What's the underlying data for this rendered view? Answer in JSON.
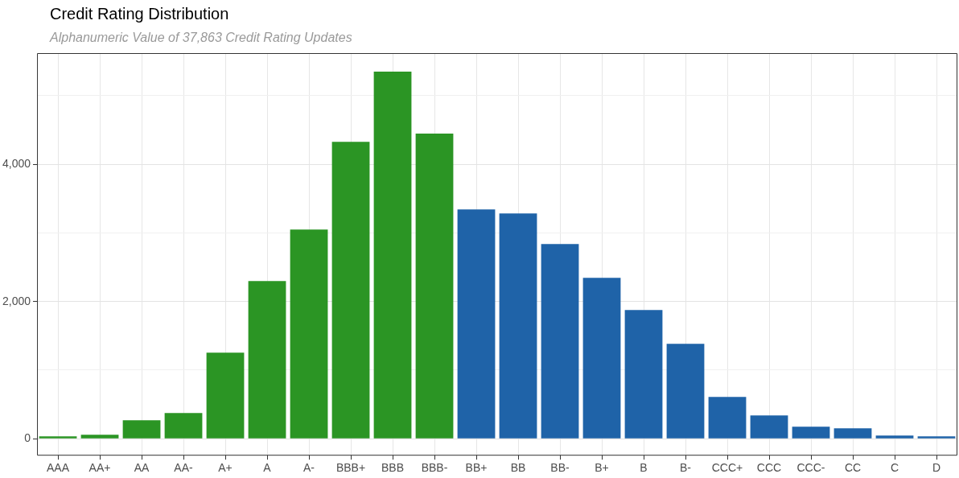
{
  "chart_data": {
    "type": "bar",
    "title": "Credit Rating Distribution",
    "subtitle": "Alphanumeric Value of 37,863 Credit Rating Updates",
    "categories": [
      "AAA",
      "AA+",
      "AA",
      "AA-",
      "A+",
      "A",
      "A-",
      "BBB+",
      "BBB",
      "BBB-",
      "BB+",
      "BB",
      "BB-",
      "B+",
      "B",
      "B-",
      "CCC+",
      "CCC",
      "CCC-",
      "CC",
      "C",
      "D"
    ],
    "values": [
      35,
      59,
      270,
      375,
      1255,
      2299,
      3050,
      4328,
      5349,
      4446,
      3343,
      3284,
      2839,
      2346,
      1877,
      1384,
      610,
      340,
      176,
      152,
      47,
      35
    ],
    "colors": [
      "#2b9524",
      "#2b9524",
      "#2b9524",
      "#2b9524",
      "#2b9524",
      "#2b9524",
      "#2b9524",
      "#2b9524",
      "#2b9524",
      "#2b9524",
      "#1f63a8",
      "#1f63a8",
      "#1f63a8",
      "#1f63a8",
      "#1f63a8",
      "#1f63a8",
      "#1f63a8",
      "#1f63a8",
      "#1f63a8",
      "#1f63a8",
      "#1f63a8",
      "#1f63a8"
    ],
    "ylim": [
      -246,
      5620
    ],
    "yticks": [
      {
        "value": 0,
        "label": "0"
      },
      {
        "value": 1000,
        "label": null
      },
      {
        "value": 2000,
        "label": "2,000"
      },
      {
        "value": 3000,
        "label": null
      },
      {
        "value": 4000,
        "label": "4,000"
      },
      {
        "value": 5000,
        "label": null
      }
    ],
    "grid": true
  }
}
